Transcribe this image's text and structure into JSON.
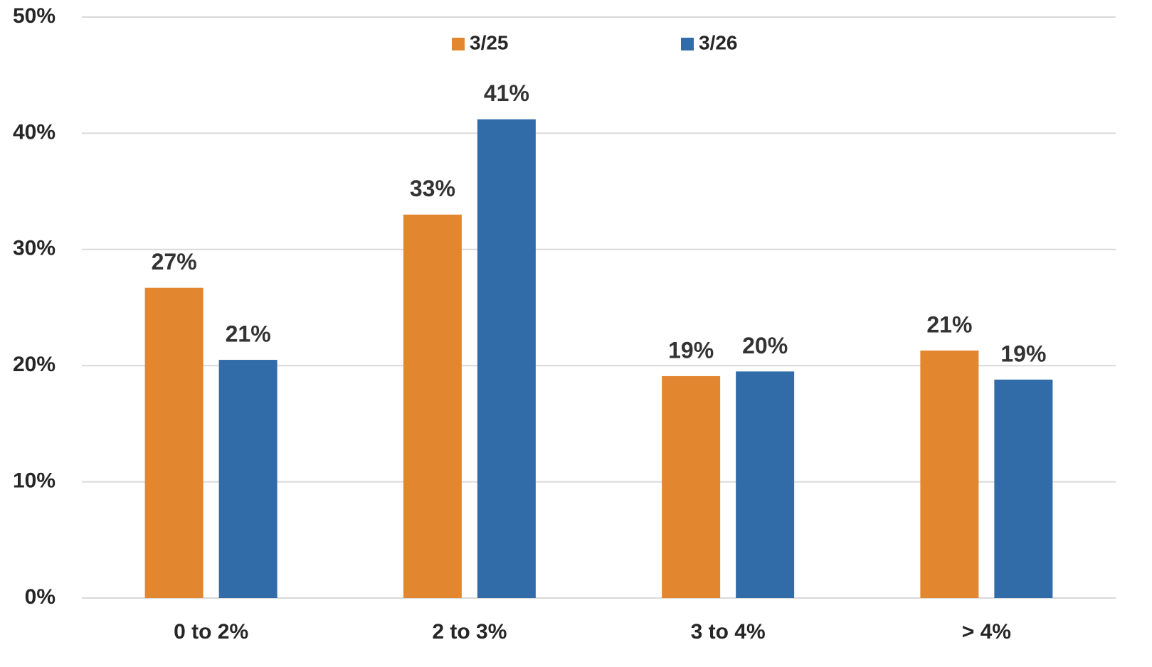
{
  "chart_data": {
    "type": "bar",
    "categories": [
      "0 to 2%",
      "2 to 3%",
      "3 to 4%",
      "> 4%"
    ],
    "series": [
      {
        "name": "3/25",
        "color": "#e38630",
        "values": [
          26.7,
          33.0,
          19.1,
          21.3
        ],
        "value_labels": [
          "27%",
          "33%",
          "19%",
          "21%"
        ]
      },
      {
        "name": "3/26",
        "color": "#326ca8",
        "values": [
          20.5,
          41.2,
          19.5,
          18.8
        ],
        "value_labels": [
          "21%",
          "41%",
          "20%",
          "19%"
        ]
      }
    ],
    "ylim": [
      0,
      50
    ],
    "yticks": [
      {
        "value": 0,
        "label": "0%"
      },
      {
        "value": 10,
        "label": "10%"
      },
      {
        "value": 20,
        "label": "20%"
      },
      {
        "value": 30,
        "label": "30%"
      },
      {
        "value": 40,
        "label": "40%"
      },
      {
        "value": 50,
        "label": "50%"
      }
    ],
    "grid": true,
    "legend": "top"
  }
}
